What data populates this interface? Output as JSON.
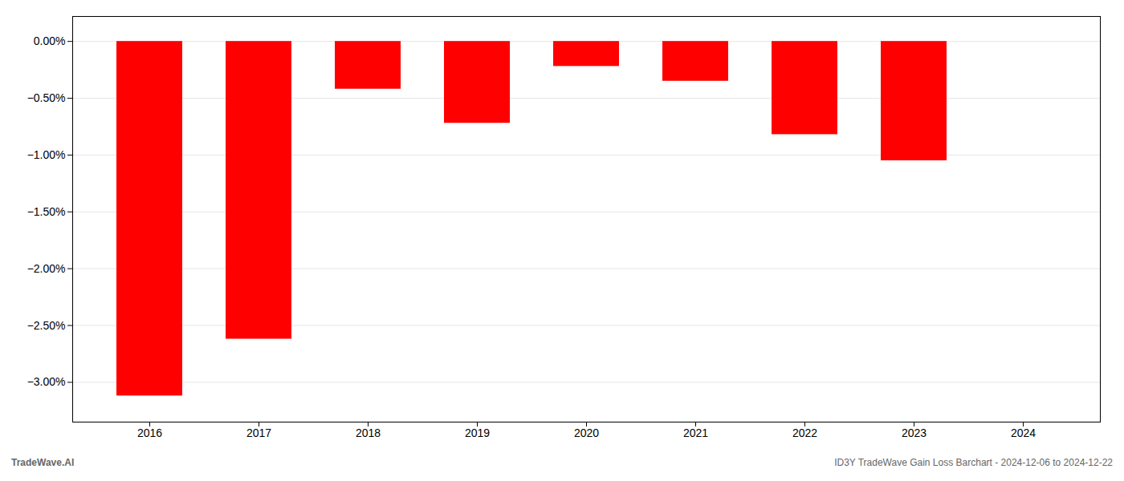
{
  "chart_data": {
    "type": "bar",
    "categories": [
      "2016",
      "2017",
      "2018",
      "2019",
      "2020",
      "2021",
      "2022",
      "2023",
      "2024"
    ],
    "values": [
      -3.12,
      -2.62,
      -0.42,
      -0.72,
      -0.22,
      -0.35,
      -0.82,
      -1.05,
      0.0
    ],
    "color": "#ff0000",
    "ylim": [
      -3.35,
      0.22
    ],
    "yticks": [
      {
        "value": 0.0,
        "label": "0.00%"
      },
      {
        "value": -0.5,
        "label": "−0.50%"
      },
      {
        "value": -1.0,
        "label": "−1.00%"
      },
      {
        "value": -1.5,
        "label": "−1.50%"
      },
      {
        "value": -2.0,
        "label": "−2.00%"
      },
      {
        "value": -2.5,
        "label": "−2.50%"
      },
      {
        "value": -3.0,
        "label": "−3.00%"
      }
    ],
    "grid": true,
    "annotations": [
      "TradeWave.AI",
      "ID3Y TradeWave Gain Loss Barchart - 2024-12-06 to 2024-12-22"
    ]
  }
}
